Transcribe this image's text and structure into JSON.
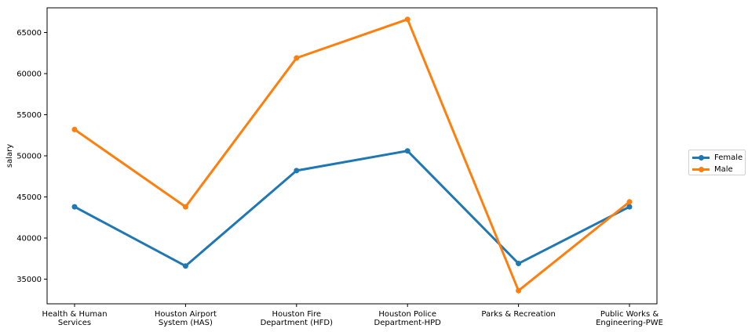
{
  "chart_data": {
    "type": "line",
    "title": "",
    "xlabel": "",
    "ylabel": "salary",
    "ylim": [
      32000,
      68000
    ],
    "yticks": [
      35000,
      40000,
      45000,
      50000,
      55000,
      60000,
      65000
    ],
    "categories": [
      "Health & Human Services",
      "Houston Airport System (HAS)",
      "Houston Fire Department (HFD)",
      "Houston Police Department-HPD",
      "Parks & Recreation",
      "Public Works & Engineering-PWE"
    ],
    "category_labels": [
      [
        "Health & Human",
        "Services"
      ],
      [
        "Houston Airport",
        "System (HAS)"
      ],
      [
        "Houston Fire",
        "Department (HFD)"
      ],
      [
        "Houston Police",
        "Department-HPD"
      ],
      [
        "Parks & Recreation"
      ],
      [
        "Public Works &",
        "Engineering-PWE"
      ]
    ],
    "series": [
      {
        "name": "Female",
        "color": "#1f77b4",
        "values": [
          43800,
          36600,
          48200,
          50600,
          36900,
          43800
        ]
      },
      {
        "name": "Male",
        "color": "#ff7f0e",
        "values": [
          53200,
          43800,
          61900,
          66600,
          33600,
          44400
        ]
      }
    ],
    "legend": {
      "placement": "right-outside"
    },
    "grid": false
  }
}
